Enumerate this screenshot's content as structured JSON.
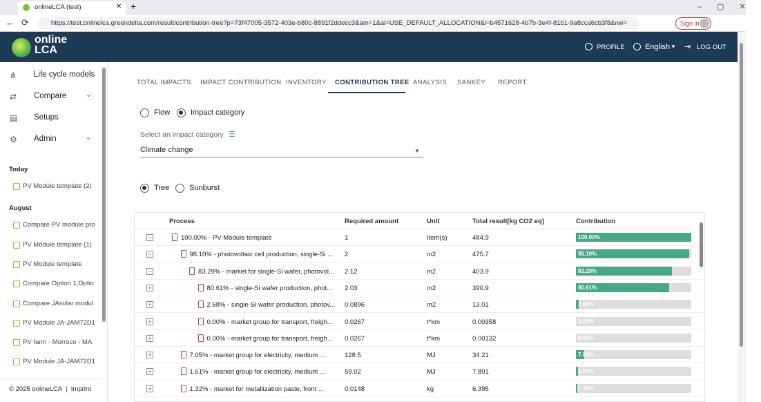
{
  "browser": {
    "tab_title": "onlineLCA (test)",
    "url": "https://test.onlinelca.greendelta.com/result/contribution-tree?p=73f47005-3572-403e-b80c-8891f2ddecc3&am=1&al=USE_DEFAULT_ALLOCATION&i=b4571628-4b7b-3e4f-81b1-9a8cca6cb3f8&nw=",
    "sign_in": "Sign in"
  },
  "header": {
    "logo_top": "online",
    "logo_bottom": "LCA",
    "profile": "PROFILE",
    "language": "English",
    "logout": "LOG OUT"
  },
  "sidebar": {
    "nav": [
      "Life cycle models",
      "Compare",
      "Setups",
      "Admin"
    ],
    "groups": [
      {
        "title": "Today",
        "items": [
          "PV Module template (2)"
        ]
      },
      {
        "title": "August",
        "items": [
          "Compare PV module pro",
          "PV Module template (1)",
          "PV Module template",
          "Compare Option 1,Optio",
          "Compare JAsolar modul",
          "PV Module JA-JAM72D1",
          "PV farm - Morroco - MA",
          "PV Module JA-JAM72D1"
        ]
      }
    ],
    "footer": "© 2025 onlineLCA",
    "imprint": "Imprint"
  },
  "tabs": [
    "TOTAL IMPACTS",
    "IMPACT CONTRIBUTION",
    "INVENTORY",
    "CONTRIBUTION TREE",
    "ANALYSIS",
    "SANKEY",
    "REPORT"
  ],
  "mode": {
    "options": [
      "Flow",
      "Impact category"
    ],
    "select_label": "Select an impact category",
    "selected": "Climate change",
    "views": [
      "Tree",
      "Sunburst"
    ]
  },
  "table": {
    "columns": [
      "Process",
      "Required amount",
      "Unit",
      "Total result[kg CO2 eq]",
      "Contribution"
    ],
    "rows": [
      {
        "level": 0,
        "process": "100.00% - PV Module template",
        "amount": "1",
        "unit": "Item(s)",
        "total": "484.9",
        "contribution": {
          "value": 100,
          "label": "100.00%"
        }
      },
      {
        "level": 1,
        "process": "98.10% - photovoltaic cell production, single-Si ...",
        "amount": "2",
        "unit": "m2",
        "total": "475.7",
        "contribution": {
          "value": 98.1,
          "label": "98.10%"
        }
      },
      {
        "level": 2,
        "process": "83.29% - market for single-Si wafer, photovol...",
        "amount": "2.12",
        "unit": "m2",
        "total": "403.9",
        "contribution": {
          "value": 83.29,
          "label": "83.29%"
        }
      },
      {
        "level": 3,
        "process": "80.61% - single-Si wafer production, phot...",
        "amount": "2.03",
        "unit": "m2",
        "total": "390.9",
        "contribution": {
          "value": 80.61,
          "label": "80.61%"
        }
      },
      {
        "level": 3,
        "process": "2.68% - single-Si wafer production, photov...",
        "amount": "0.0896",
        "unit": "m2",
        "total": "13.01",
        "contribution": {
          "value": 2.68,
          "label": "2.68%"
        }
      },
      {
        "level": 3,
        "process": "0.00% - market group for transport, freigh...",
        "amount": "0.0267",
        "unit": "t*km",
        "total": "0.00358",
        "contribution": {
          "value": 0,
          "label": "0.00%"
        }
      },
      {
        "level": 3,
        "process": "0.00% - market group for transport, freigh...",
        "amount": "0.0267",
        "unit": "t*km",
        "total": "0.00132",
        "contribution": {
          "value": 0,
          "label": "0.00%"
        }
      },
      {
        "level": 1,
        "process": "7.05% - market group for electricity, medium ...",
        "amount": "128.5",
        "unit": "MJ",
        "total": "34.21",
        "contribution": {
          "value": 7.05,
          "label": "7.05%"
        }
      },
      {
        "level": 1,
        "process": "1.61% - market group for electricity, medium ...",
        "amount": "59.02",
        "unit": "MJ",
        "total": "7.801",
        "contribution": {
          "value": 1.61,
          "label": "1.61%"
        }
      },
      {
        "level": 1,
        "process": "1.32% - market for metallization paste, front ...",
        "amount": "0.0148",
        "unit": "kg",
        "total": "6.395",
        "contribution": {
          "value": 1.32,
          "label": "1.32%"
        }
      }
    ]
  }
}
